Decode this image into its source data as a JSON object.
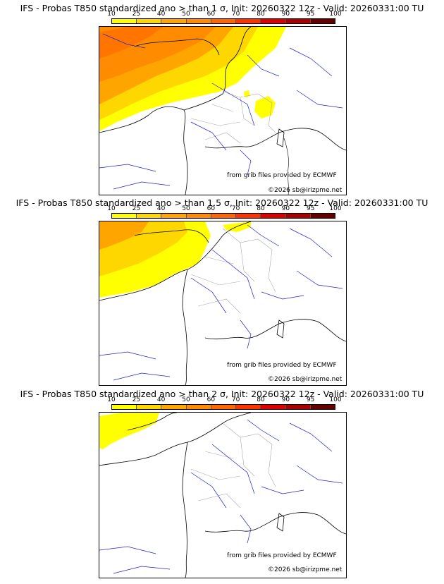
{
  "legend": {
    "labels": [
      "10",
      "25",
      "40",
      "50",
      "60",
      "70",
      "80",
      "90",
      "95",
      "100"
    ],
    "colors": [
      "#ffff00",
      "#ffd700",
      "#ffa500",
      "#ff8c00",
      "#ff6600",
      "#ff3300",
      "#dd0000",
      "#aa0000",
      "#660000"
    ]
  },
  "panels": [
    {
      "title": "IFS - Probas T850  standardized ano > than 1 σ, Init: 20260322 12z - Valid: 20260331:00 TU",
      "credit_source": "from grib files provided by ECMWF",
      "credit_copyright": "©2026 sb@irizpme.net"
    },
    {
      "title": "IFS - Probas T850  standardized ano > than 1.5 σ, Init: 20260322 12z - Valid: 20260331:00 TU",
      "credit_source": "from grib files provided by ECMWF",
      "credit_copyright": "©2026 sb@irizpme.net"
    },
    {
      "title": "IFS - Probas T850  standardized ano > than 2 σ, Init: 20260322 12z - Valid: 20260331:00 TU",
      "credit_source": "from grib files provided by ECMWF",
      "credit_copyright": "©2026 sb@irizpme.net"
    }
  ]
}
